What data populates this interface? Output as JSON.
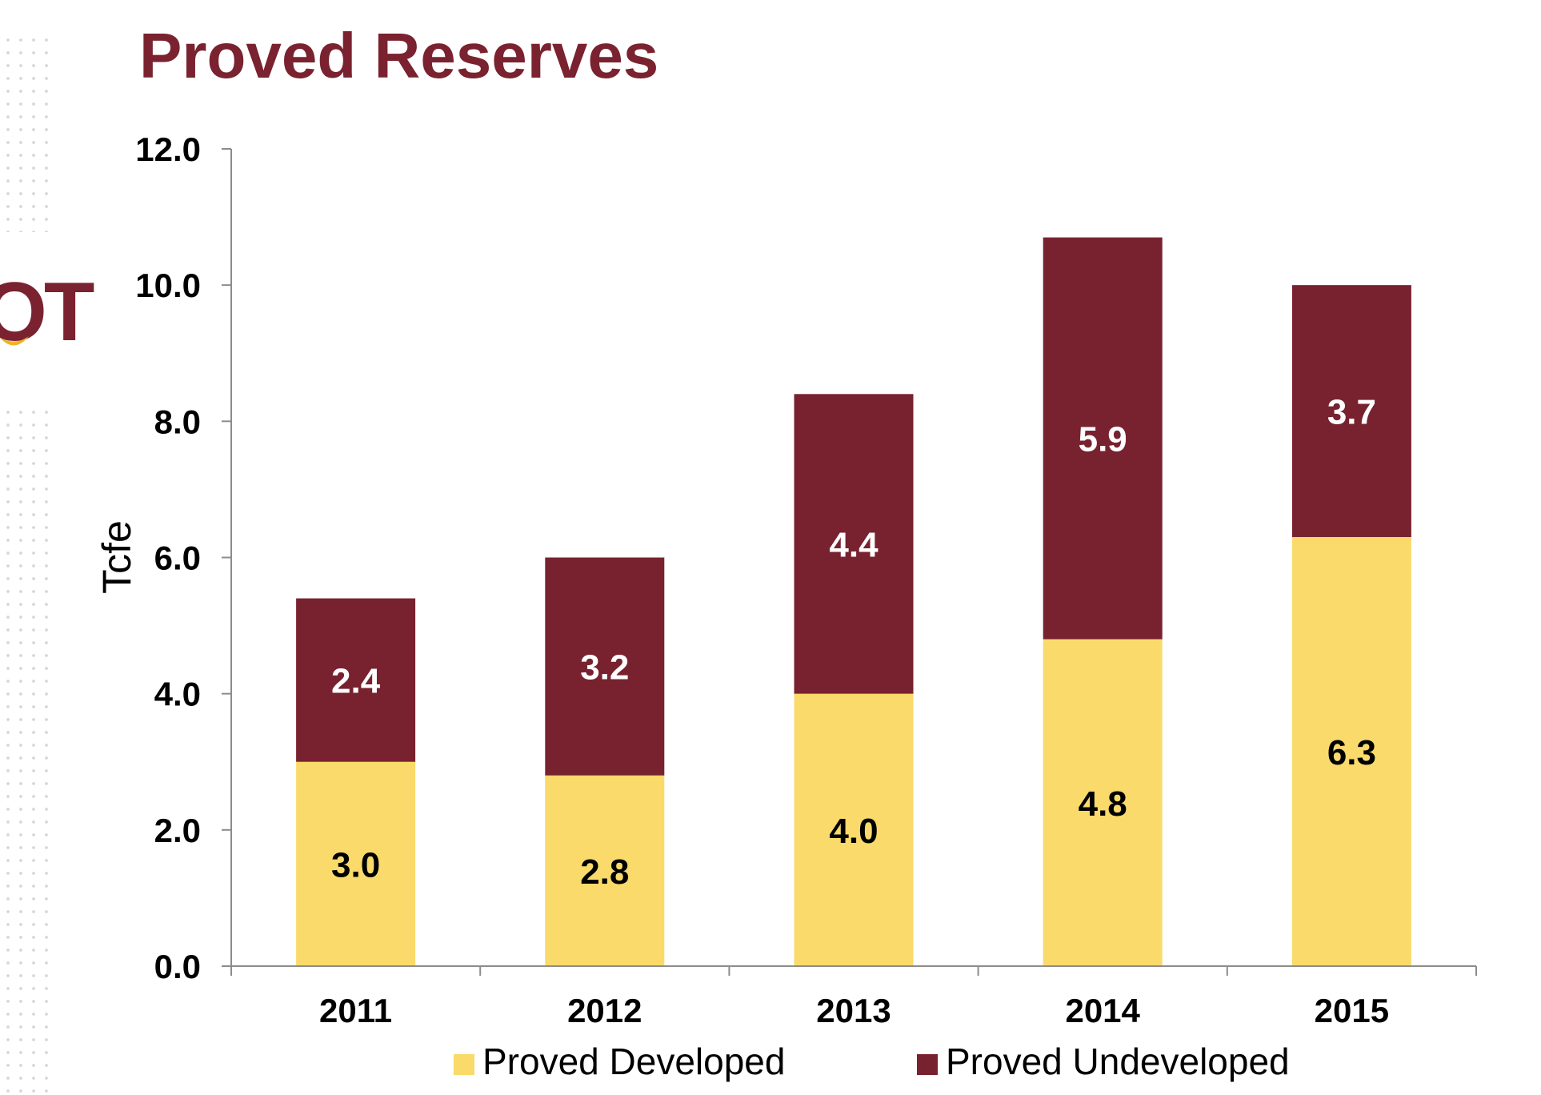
{
  "colors": {
    "title": "#7a222f",
    "developed": "#f9da6a",
    "undeveloped": "#78222f",
    "axis": "#8c8c8c",
    "label_on_dark": "#ffffff",
    "label_on_light": "#000000"
  },
  "logo": {
    "visible_text": "OT"
  },
  "chart_data": {
    "type": "bar",
    "stacked": true,
    "title": "Proved Reserves",
    "ylabel": "Tcfe",
    "xlabel": "",
    "categories": [
      "2011",
      "2012",
      "2013",
      "2014",
      "2015"
    ],
    "ylim": [
      0,
      12
    ],
    "yticks": [
      0,
      2,
      4,
      6,
      8,
      10,
      12
    ],
    "ytick_labels": [
      "0.0",
      "2.0",
      "4.0",
      "6.0",
      "8.0",
      "10.0",
      "12.0"
    ],
    "grid": false,
    "legend_position": "bottom",
    "series": [
      {
        "name": "Proved Developed",
        "color": "#f9da6a",
        "values": [
          3.0,
          2.8,
          4.0,
          4.8,
          6.3
        ],
        "labels": [
          "3.0",
          "2.8",
          "4.0",
          "4.8",
          "6.3"
        ]
      },
      {
        "name": "Proved Undeveloped",
        "color": "#78222f",
        "values": [
          2.4,
          3.2,
          4.4,
          5.9,
          3.7
        ],
        "labels": [
          "2.4",
          "3.2",
          "4.4",
          "5.9",
          "3.7"
        ]
      }
    ]
  }
}
